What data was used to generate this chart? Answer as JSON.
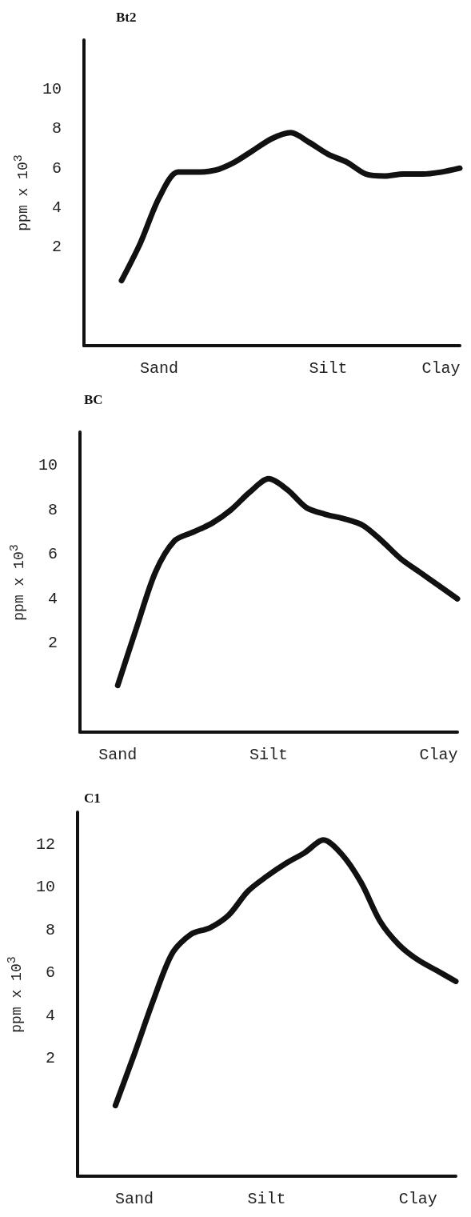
{
  "chart_data": [
    {
      "type": "line",
      "title": "Bt2",
      "ylabel": "ppm x 10$^{3}$",
      "color": "#111111",
      "categories": [
        null,
        null,
        null,
        null,
        "Sand",
        null,
        null,
        null,
        null,
        null,
        null,
        null,
        null,
        "Silt",
        null,
        null,
        null,
        null,
        null,
        "Clay",
        null
      ],
      "values": [
        null,
        null,
        0.3,
        2.2,
        4.5,
        5.8,
        5.8,
        5.9,
        6.3,
        6.9,
        7.5,
        7.8,
        7.3,
        6.7,
        6.3,
        5.7,
        5.6,
        5.7,
        5.7,
        5.8,
        6.0
      ],
      "ylim": [
        -3,
        12.5
      ],
      "yticks": [
        2,
        4,
        6,
        8,
        10
      ],
      "grid": false
    },
    {
      "type": "line",
      "title": "BC",
      "ylabel": "ppm x 10$^{3}$",
      "color": "#111111",
      "categories": [
        null,
        null,
        "Sand",
        null,
        null,
        null,
        null,
        null,
        null,
        null,
        "Silt",
        null,
        null,
        null,
        null,
        null,
        null,
        null,
        null,
        "Clay",
        null
      ],
      "values": [
        null,
        null,
        0.1,
        2.7,
        5.2,
        6.6,
        7.0,
        7.4,
        8.0,
        8.8,
        9.4,
        8.9,
        8.1,
        7.8,
        7.6,
        7.3,
        6.6,
        5.8,
        5.2,
        4.6,
        4.0
      ],
      "ylim": [
        -2,
        11.5
      ],
      "yticks": [
        2,
        4,
        6,
        8,
        10
      ],
      "grid": false
    },
    {
      "type": "line",
      "title": "C1",
      "ylabel": "ppm x 10$^{3}$",
      "color": "#111111",
      "categories": [
        null,
        null,
        null,
        "Sand",
        null,
        null,
        null,
        null,
        null,
        null,
        "Silt",
        null,
        null,
        null,
        null,
        null,
        null,
        null,
        "Clay",
        null,
        null
      ],
      "values": [
        null,
        null,
        -0.2,
        2.2,
        4.7,
        6.9,
        7.8,
        8.1,
        8.7,
        9.8,
        10.5,
        11.1,
        11.6,
        12.2,
        11.5,
        10.2,
        8.4,
        7.3,
        6.6,
        6.1,
        5.6
      ],
      "ylim": [
        -3.5,
        13.5
      ],
      "yticks": [
        2,
        4,
        6,
        8,
        10,
        12
      ],
      "grid": false
    }
  ]
}
